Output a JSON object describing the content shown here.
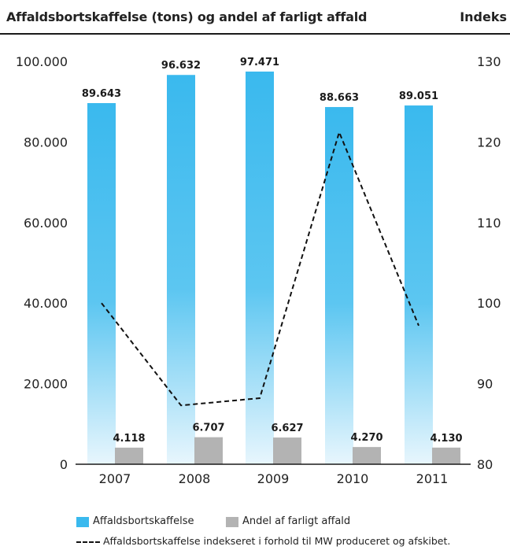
{
  "header": {
    "title": "Affaldsbortskaffelse (tons) og andel af farligt affald",
    "right_title": "Indeks"
  },
  "legend": {
    "series1": "Affaldsbortskaffelse",
    "series2": "Andel af farligt affald",
    "series3": "Affaldsbortskaffelse indekseret i forhold til MW produceret og afskibet."
  },
  "colors": {
    "bar_top": "#3ab9ee",
    "bar_bottom": "#e8f6fd",
    "small_bar": "#b3b3b3",
    "line": "#111111"
  },
  "chart_data": {
    "type": "bar",
    "title": "Affaldsbortskaffelse (tons) og andel af farligt affald",
    "categories": [
      "2007",
      "2008",
      "2009",
      "2010",
      "2011"
    ],
    "series": [
      {
        "name": "Affaldsbortskaffelse",
        "values": [
          89643,
          96632,
          97471,
          88663,
          89051
        ],
        "labels": [
          "89.643",
          "96.632",
          "97.471",
          "88.663",
          "89.051"
        ],
        "axis": "left"
      },
      {
        "name": "Andel af farligt affald",
        "values": [
          4118,
          6707,
          6627,
          4270,
          4130
        ],
        "labels": [
          "4.118",
          "6.707",
          "6.627",
          "4.270",
          "4.130"
        ],
        "axis": "left"
      },
      {
        "name": "Affaldsbortskaffelse indekseret i forhold til MW produceret og afskibet.",
        "type": "line",
        "style": "dashed",
        "values": [
          100,
          87.3,
          88.2,
          121.2,
          97.2
        ],
        "axis": "right"
      }
    ],
    "ylim": [
      0,
      100000
    ],
    "y_ticks": [
      "0",
      "20.000",
      "40.000",
      "60.000",
      "80.000",
      "100.000"
    ],
    "y_tick_values": [
      0,
      20000,
      40000,
      60000,
      80000,
      100000
    ],
    "y2label": "Indeks",
    "y2lim": [
      80,
      130
    ],
    "y2_ticks": [
      "80",
      "90",
      "100",
      "110",
      "120",
      "130"
    ],
    "y2_tick_values": [
      80,
      90,
      100,
      110,
      120,
      130
    ],
    "grid": false
  }
}
